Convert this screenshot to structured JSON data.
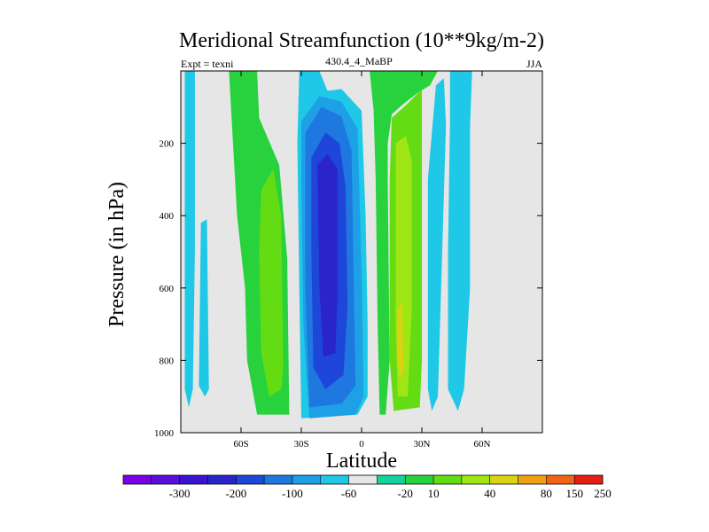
{
  "chart_data": {
    "type": "contour",
    "title": "Meridional Streamfunction (10**9kg/m-2)",
    "subtitle_left": "Expt = texni",
    "subtitle_center": "430.4_4_MaBP",
    "subtitle_right": "JJA",
    "xlabel": "Latitude",
    "ylabel": "Pressure (in hPa)",
    "xlim": [
      -90,
      90
    ],
    "ylim": [
      0,
      1000
    ],
    "y_inverted": true,
    "x_ticks": [
      {
        "value": -60,
        "label": "60S"
      },
      {
        "value": -30,
        "label": "30S"
      },
      {
        "value": 0,
        "label": "0"
      },
      {
        "value": 30,
        "label": "30N"
      },
      {
        "value": 60,
        "label": "60N"
      }
    ],
    "y_ticks": [
      {
        "value": 200,
        "label": "200"
      },
      {
        "value": 400,
        "label": "400"
      },
      {
        "value": 600,
        "label": "600"
      },
      {
        "value": 800,
        "label": "800"
      },
      {
        "value": 1000,
        "label": "1000"
      }
    ],
    "background_color": "#e6e6e6",
    "colorbar": {
      "colors": [
        "#7a00e6",
        "#5a0fdc",
        "#3a14d2",
        "#2a24cc",
        "#1e46d8",
        "#1e78e0",
        "#1ea0e6",
        "#1ec8e6",
        "#e6e6e6",
        "#14d2a0",
        "#28d23c",
        "#64dc14",
        "#a0e614",
        "#dcd214",
        "#f0a014",
        "#f06414",
        "#e61e14"
      ],
      "labels": [
        "-300",
        "-200",
        "-100",
        "-60",
        "-20",
        "10",
        "40",
        "80",
        "150",
        "250"
      ],
      "label_after_bin": [
        1,
        3,
        5,
        7,
        9,
        10,
        12,
        14,
        15
      ]
    },
    "regions": [
      {
        "name": "far-south-cell-a",
        "level": 7,
        "points": [
          [
            -88,
            0
          ],
          [
            -83,
            0
          ],
          [
            -83,
            500
          ],
          [
            -84,
            880
          ],
          [
            -86,
            930
          ],
          [
            -88,
            880
          ]
        ]
      },
      {
        "name": "far-south-cell-b",
        "level": 7,
        "points": [
          [
            -80,
            420
          ],
          [
            -77,
            410
          ],
          [
            -76,
            880
          ],
          [
            -78,
            900
          ],
          [
            -81,
            870
          ]
        ]
      },
      {
        "name": "south-cell-outer",
        "level": 10,
        "points": [
          [
            -66,
            0
          ],
          [
            -52,
            0
          ],
          [
            -51,
            130
          ],
          [
            -41,
            260
          ],
          [
            -37,
            520
          ],
          [
            -36,
            950
          ],
          [
            -52,
            950
          ],
          [
            -57,
            800
          ],
          [
            -58,
            600
          ],
          [
            -62,
            400
          ],
          [
            -64,
            200
          ]
        ]
      },
      {
        "name": "south-cell-mid",
        "level": 11,
        "points": [
          [
            -50,
            330
          ],
          [
            -44,
            270
          ],
          [
            -40,
            400
          ],
          [
            -39,
            820
          ],
          [
            -40,
            880
          ],
          [
            -46,
            900
          ],
          [
            -50,
            780
          ],
          [
            -51,
            500
          ]
        ]
      },
      {
        "name": "sh-cell-20",
        "level": 7,
        "points": [
          [
            -31,
            0
          ],
          [
            -21,
            0
          ],
          [
            -17,
            55
          ],
          [
            -10,
            50
          ],
          [
            0,
            110
          ],
          [
            2,
            400
          ],
          [
            3,
            700
          ],
          [
            3,
            900
          ],
          [
            -2,
            950
          ],
          [
            -30,
            960
          ],
          [
            -31,
            600
          ],
          [
            -32,
            200
          ]
        ]
      },
      {
        "name": "sh-cell-60",
        "level": 6,
        "points": [
          [
            -30,
            140
          ],
          [
            -21,
            70
          ],
          [
            -10,
            85
          ],
          [
            -2,
            160
          ],
          [
            0,
            550
          ],
          [
            1,
            900
          ],
          [
            -3,
            950
          ],
          [
            -26,
            960
          ],
          [
            -29,
            700
          ],
          [
            -30,
            300
          ]
        ]
      },
      {
        "name": "sh-cell-100",
        "level": 5,
        "points": [
          [
            -28,
            170
          ],
          [
            -20,
            100
          ],
          [
            -10,
            125
          ],
          [
            -5,
            220
          ],
          [
            -4,
            550
          ],
          [
            -3,
            870
          ],
          [
            -10,
            920
          ],
          [
            -26,
            930
          ],
          [
            -28,
            600
          ]
        ]
      },
      {
        "name": "sh-cell-200",
        "level": 4,
        "points": [
          [
            -25,
            240
          ],
          [
            -18,
            170
          ],
          [
            -11,
            200
          ],
          [
            -8,
            320
          ],
          [
            -7,
            650
          ],
          [
            -9,
            840
          ],
          [
            -18,
            880
          ],
          [
            -24,
            820
          ],
          [
            -25,
            500
          ]
        ]
      },
      {
        "name": "sh-cell-300",
        "level": 3,
        "points": [
          [
            -22,
            260
          ],
          [
            -17,
            230
          ],
          [
            -12,
            270
          ],
          [
            -12,
            620
          ],
          [
            -13,
            780
          ],
          [
            -19,
            790
          ],
          [
            -21,
            600
          ]
        ]
      },
      {
        "name": "nh-cell-outer",
        "level": 10,
        "points": [
          [
            4,
            0
          ],
          [
            38,
            0
          ],
          [
            34,
            40
          ],
          [
            28,
            60
          ],
          [
            20,
            95
          ],
          [
            15,
            120
          ],
          [
            13,
            200
          ],
          [
            13,
            300
          ],
          [
            14,
            800
          ],
          [
            12,
            950
          ],
          [
            9,
            950
          ],
          [
            8,
            700
          ],
          [
            7,
            300
          ],
          [
            6,
            110
          ]
        ]
      },
      {
        "name": "nh-cell-mid",
        "level": 11,
        "points": [
          [
            15,
            130
          ],
          [
            23,
            90
          ],
          [
            30,
            50
          ],
          [
            30,
            800
          ],
          [
            29,
            930
          ],
          [
            16,
            940
          ],
          [
            14,
            800
          ],
          [
            14,
            300
          ]
        ]
      },
      {
        "name": "nh-cell-inner",
        "level": 12,
        "points": [
          [
            17,
            200
          ],
          [
            22,
            180
          ],
          [
            25,
            250
          ],
          [
            25,
            650
          ],
          [
            23,
            900
          ],
          [
            18,
            900
          ],
          [
            17,
            700
          ]
        ]
      },
      {
        "name": "nh-cell-core",
        "level": 13,
        "points": [
          [
            18,
            660
          ],
          [
            20,
            640
          ],
          [
            21,
            820
          ],
          [
            19,
            850
          ],
          [
            18,
            800
          ]
        ]
      },
      {
        "name": "north-cell-a",
        "level": 7,
        "points": [
          [
            44,
            0
          ],
          [
            55,
            0
          ],
          [
            54,
            150
          ],
          [
            54,
            600
          ],
          [
            51,
            880
          ],
          [
            48,
            940
          ],
          [
            43,
            880
          ],
          [
            43,
            500
          ],
          [
            44,
            150
          ]
        ]
      },
      {
        "name": "north-cell-b",
        "level": 7,
        "points": [
          [
            37,
            40
          ],
          [
            41,
            20
          ],
          [
            42,
            150
          ],
          [
            38,
            900
          ],
          [
            35,
            940
          ],
          [
            33,
            880
          ],
          [
            33,
            300
          ]
        ]
      }
    ]
  }
}
